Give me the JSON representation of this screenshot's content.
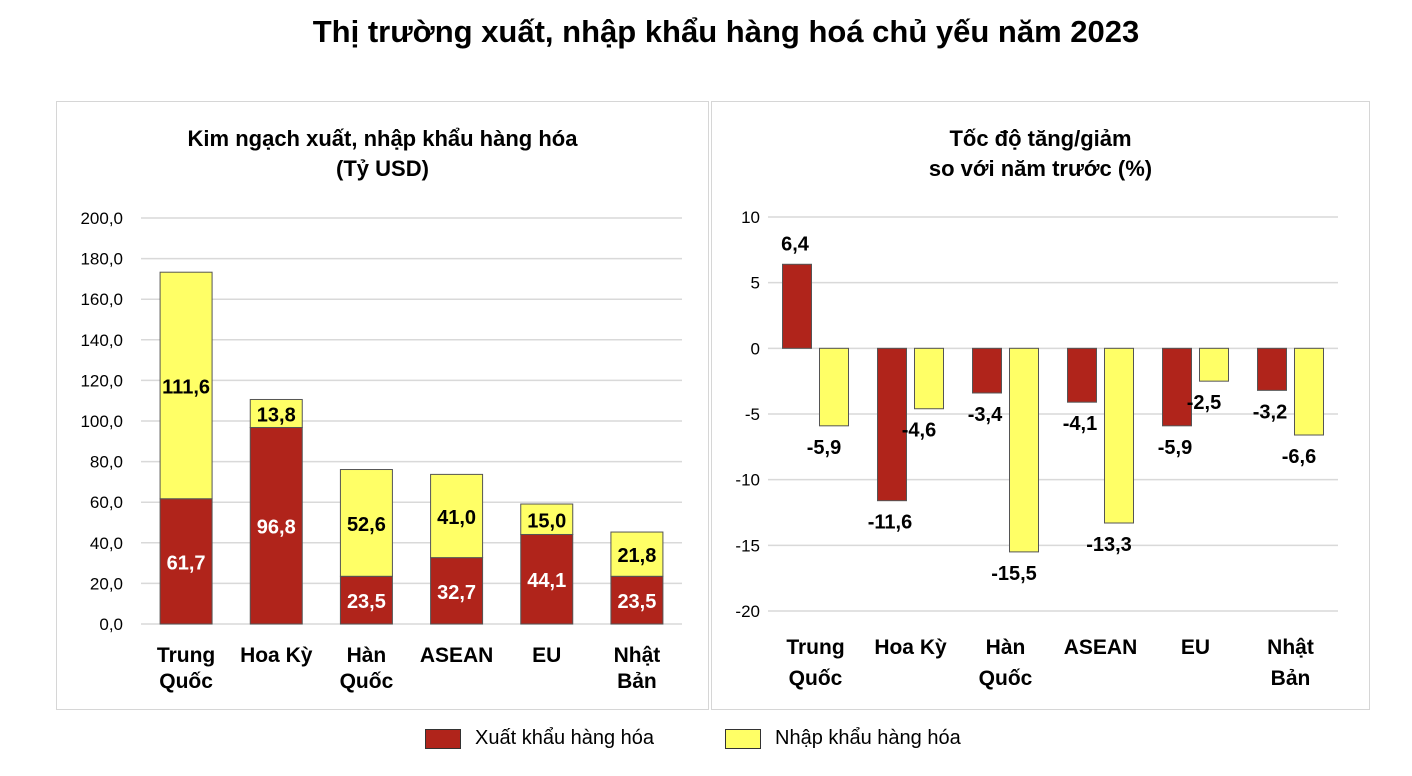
{
  "title": "Thị trường xuất, nhập khẩu hàng hoá chủ yếu năm 2023",
  "legend": {
    "export_label": "Xuất khẩu hàng hóa",
    "import_label": "Nhập khẩu hàng hóa",
    "export_color": "#B0241B",
    "import_color": "#FFFF66"
  },
  "chart_data": [
    {
      "type": "bar",
      "stacked": true,
      "title": "Kim ngạch xuất, nhập khẩu hàng hóa",
      "subtitle": "(Tỷ USD)",
      "categories": [
        [
          "Trung",
          "Quốc"
        ],
        [
          "Hoa Kỳ"
        ],
        [
          "Hàn",
          "Quốc"
        ],
        [
          "ASEAN"
        ],
        [
          "EU"
        ],
        [
          "Nhật",
          "Bản"
        ]
      ],
      "series": [
        {
          "name": "Xuất khẩu hàng hóa",
          "values": [
            61.7,
            96.8,
            23.5,
            32.7,
            44.1,
            23.5
          ]
        },
        {
          "name": "Nhập khẩu hàng hóa",
          "values": [
            111.6,
            13.8,
            52.6,
            41.0,
            15.0,
            21.8
          ]
        }
      ],
      "data_labels": [
        [
          "61,7",
          "96,8",
          "23,5",
          "32,7",
          "44,1",
          "23,5"
        ],
        [
          "111,6",
          "13,8",
          "52,6",
          "41,0",
          "15,0",
          "21,8"
        ]
      ],
      "ylim": [
        0,
        200
      ],
      "yticks": [
        0,
        20,
        40,
        60,
        80,
        100,
        120,
        140,
        160,
        180,
        200
      ],
      "ytick_labels": [
        "0,0",
        "20,0",
        "40,0",
        "60,0",
        "80,0",
        "100,0",
        "120,0",
        "140,0",
        "160,0",
        "180,0",
        "200,0"
      ],
      "grid": true,
      "legend_position": "bottom"
    },
    {
      "type": "bar",
      "stacked": false,
      "title": "Tốc độ tăng/giảm",
      "subtitle": "so với năm trước (%)",
      "categories": [
        [
          "Trung",
          "Quốc"
        ],
        [
          "Hoa Kỳ"
        ],
        [
          "Hàn",
          "Quốc"
        ],
        [
          "ASEAN"
        ],
        [
          "EU"
        ],
        [
          "Nhật",
          "Bản"
        ]
      ],
      "series": [
        {
          "name": "Xuất khẩu hàng hóa",
          "values": [
            6.4,
            -11.6,
            -3.4,
            -4.1,
            -5.9,
            -3.2
          ]
        },
        {
          "name": "Nhập khẩu hàng hóa",
          "values": [
            -5.9,
            -4.6,
            -15.5,
            -13.3,
            -2.5,
            -6.6
          ]
        }
      ],
      "data_labels": [
        [
          "6,4",
          "-11,6",
          "-3,4",
          "-4,1",
          "-5,9",
          "-3,2"
        ],
        [
          "-5,9",
          "-4,6",
          "-15,5",
          "-13,3",
          "-2,5",
          "-6,6"
        ]
      ],
      "ylim": [
        -20,
        10
      ],
      "yticks": [
        -20,
        -15,
        -10,
        -5,
        0,
        5,
        10
      ],
      "ytick_labels": [
        "-20",
        "-15",
        "-10",
        "-5",
        "0",
        "5",
        "10"
      ],
      "grid": true,
      "legend_position": "bottom"
    }
  ]
}
